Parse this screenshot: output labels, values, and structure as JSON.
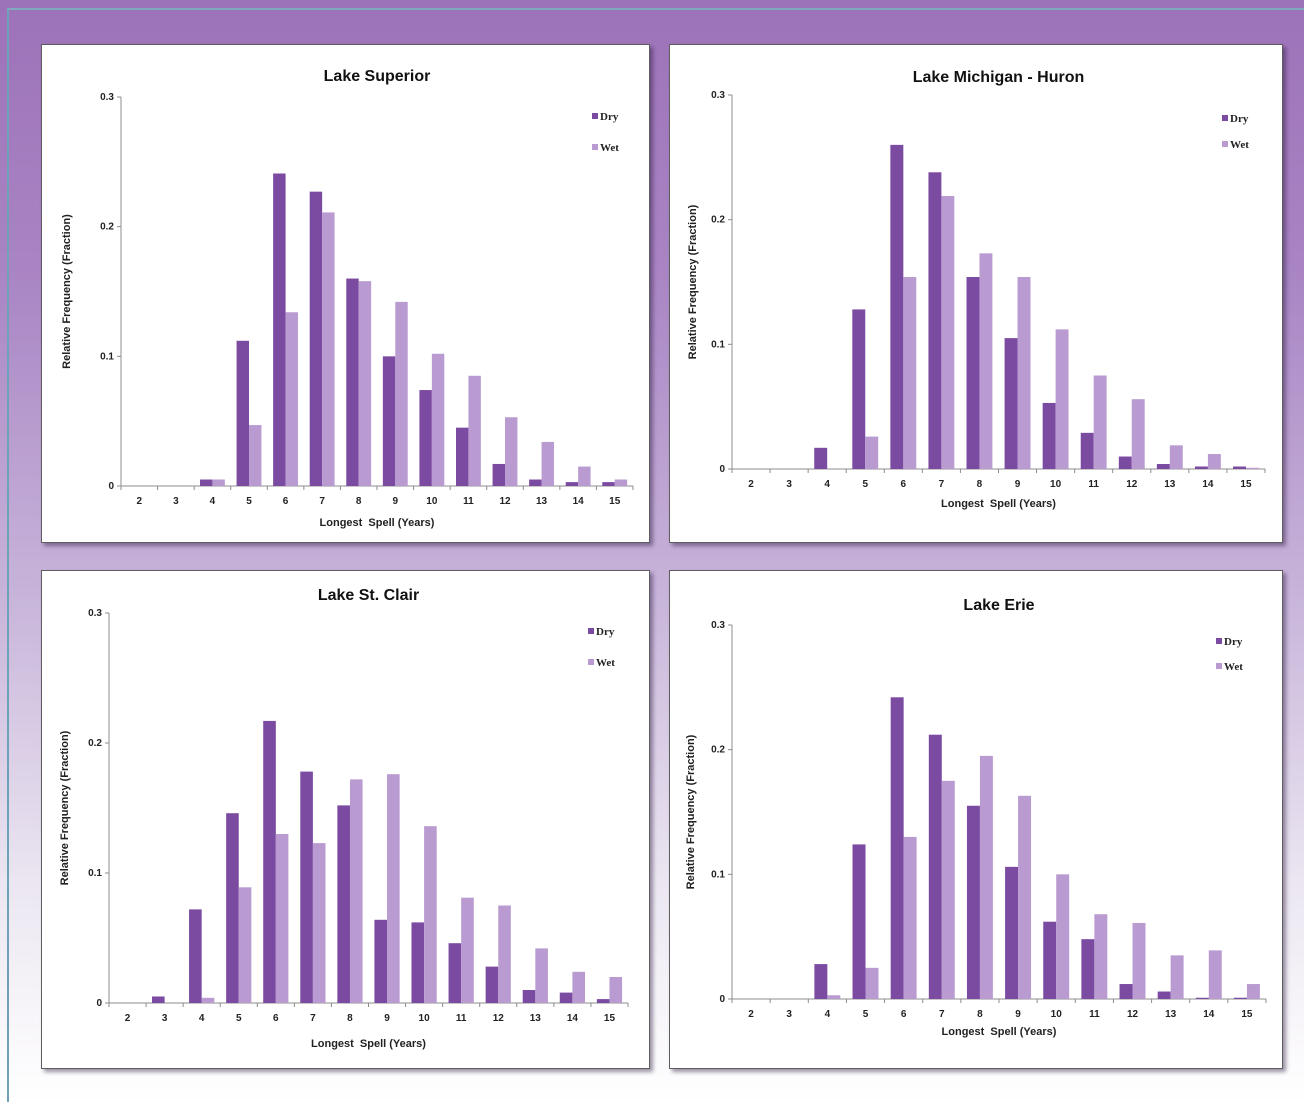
{
  "colors": {
    "dry": "#7b4aa1",
    "wet": "#b99bd1"
  },
  "chart_data": [
    {
      "type": "bar",
      "title": "Lake Superior",
      "xlabel": "Longest  Spell (Years)",
      "ylabel": "Relative Frequency (Fraction)",
      "categories": [
        "2",
        "3",
        "4",
        "5",
        "6",
        "7",
        "8",
        "9",
        "10",
        "11",
        "12",
        "13",
        "14",
        "15"
      ],
      "ylim": [
        0,
        0.3
      ],
      "yticks": [
        "0",
        "0.1",
        "0.2",
        "0.3"
      ],
      "legend_position": "top-right",
      "series": [
        {
          "name": "Dry",
          "values": [
            0,
            0,
            0.005,
            0.112,
            0.241,
            0.227,
            0.16,
            0.1,
            0.074,
            0.045,
            0.017,
            0.005,
            0.003,
            0.003
          ]
        },
        {
          "name": "Wet",
          "values": [
            0,
            0,
            0.005,
            0.047,
            0.134,
            0.211,
            0.158,
            0.142,
            0.102,
            0.085,
            0.053,
            0.034,
            0.015,
            0.005
          ]
        }
      ]
    },
    {
      "type": "bar",
      "title": "Lake Michigan - Huron",
      "xlabel": "Longest  Spell (Years)",
      "ylabel": "Relative Frequency (Fraction)",
      "categories": [
        "2",
        "3",
        "4",
        "5",
        "6",
        "7",
        "8",
        "9",
        "10",
        "11",
        "12",
        "13",
        "14",
        "15"
      ],
      "ylim": [
        0,
        0.3
      ],
      "yticks": [
        "0",
        "0.1",
        "0.2",
        "0.3"
      ],
      "legend_position": "top-right",
      "series": [
        {
          "name": "Dry",
          "values": [
            0,
            0,
            0.017,
            0.128,
            0.26,
            0.238,
            0.154,
            0.105,
            0.053,
            0.029,
            0.01,
            0.004,
            0.002,
            0.002
          ]
        },
        {
          "name": "Wet",
          "values": [
            0,
            0,
            0,
            0.026,
            0.154,
            0.219,
            0.173,
            0.154,
            0.112,
            0.075,
            0.056,
            0.019,
            0.012,
            0.001
          ]
        }
      ]
    },
    {
      "type": "bar",
      "title": "Lake St. Clair",
      "xlabel": "Longest  Spell (Years)",
      "ylabel": "Relative Frequency (Fraction)",
      "categories": [
        "2",
        "3",
        "4",
        "5",
        "6",
        "7",
        "8",
        "9",
        "10",
        "11",
        "12",
        "13",
        "14",
        "15"
      ],
      "ylim": [
        0,
        0.3
      ],
      "yticks": [
        "0",
        "0.1",
        "0.2",
        "0.3"
      ],
      "legend_position": "top-right",
      "series": [
        {
          "name": "Dry",
          "values": [
            0,
            0.005,
            0.072,
            0.146,
            0.217,
            0.178,
            0.152,
            0.064,
            0.062,
            0.046,
            0.028,
            0.01,
            0.008,
            0.003
          ]
        },
        {
          "name": "Wet",
          "values": [
            0,
            0,
            0.004,
            0.089,
            0.13,
            0.123,
            0.172,
            0.176,
            0.136,
            0.081,
            0.075,
            0.042,
            0.024,
            0.02
          ]
        }
      ]
    },
    {
      "type": "bar",
      "title": "Lake Erie",
      "xlabel": "Longest  Spell (Years)",
      "ylabel": "Relative Frequency (Fraction)",
      "categories": [
        "2",
        "3",
        "4",
        "5",
        "6",
        "7",
        "8",
        "9",
        "10",
        "11",
        "12",
        "13",
        "14",
        "15"
      ],
      "ylim": [
        0,
        0.3
      ],
      "yticks": [
        "0",
        "0.1",
        "0.2",
        "0.3"
      ],
      "legend_position": "top-right",
      "series": [
        {
          "name": "Dry",
          "values": [
            0,
            0,
            0.028,
            0.124,
            0.242,
            0.212,
            0.155,
            0.106,
            0.062,
            0.048,
            0.012,
            0.006,
            0.001,
            0.001
          ]
        },
        {
          "name": "Wet",
          "values": [
            0,
            0,
            0.003,
            0.025,
            0.13,
            0.175,
            0.195,
            0.163,
            0.1,
            0.068,
            0.061,
            0.035,
            0.039,
            0.012
          ]
        }
      ]
    }
  ]
}
